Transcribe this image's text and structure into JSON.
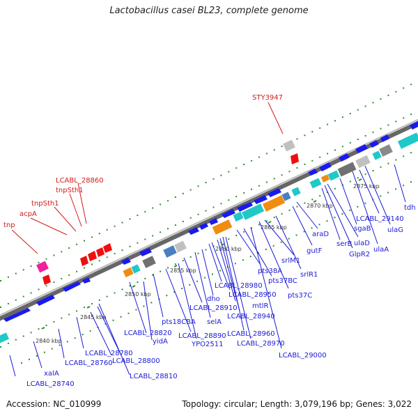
{
  "title": "Lactobacillus casei BL23, complete genome",
  "footer": {
    "accession": "Accession: NC_010999",
    "summary": "Topology: circular; Length: 3,079,196 bp; Genes: 3,022"
  },
  "scale_labels": [
    "2840 kbp",
    "2845 kbp",
    "2850 kbp",
    "2855 kbp",
    "2860 kbp",
    "2865 kbp",
    "2870 kbp",
    "2875 kbp"
  ],
  "colors": {
    "forward_gene": "#1a1aee",
    "backbone": "#888888",
    "grid_dot": "#2e8b2e",
    "rna_cyan": "#20c8c8",
    "orange": "#f08c10",
    "dark_gray": "#707070",
    "light_gray": "#c0c0c0",
    "steel_blue": "#4a80c0",
    "red_gene": "#ee1010",
    "pink_gene": "#f020a0",
    "label_blue": "#1a1ad6",
    "label_red": "#d41a1a"
  },
  "red_labels": [
    "STY3947",
    "LCABL_28860",
    "tnpSth1",
    "tnpSth1",
    "acpA",
    "tnp"
  ],
  "blue_labels": [
    "xalA",
    "LCABL_28740",
    "LCABL_28760",
    "LCABL_28780",
    "LCABL_28800",
    "LCABL_28810",
    "LCABL_28820",
    "yidA",
    "pts18CBA",
    "LCABL_28890",
    "YPO2511",
    "LCABL_28910",
    "selA",
    "dho",
    "LCABL_28980",
    "LCABL_28950",
    "mtlR",
    "LCABL_28940",
    "LCABL_28960",
    "LCABL_28970",
    "LCABL_29000",
    "pts38A",
    "pts37BC",
    "pts37C",
    "srlM1",
    "srlR1",
    "gutF",
    "araD",
    "serB",
    "GlpR2",
    "ulaD",
    "sgaB",
    "ulaA",
    "LCABL_29140",
    "ulaG",
    "tdh"
  ]
}
